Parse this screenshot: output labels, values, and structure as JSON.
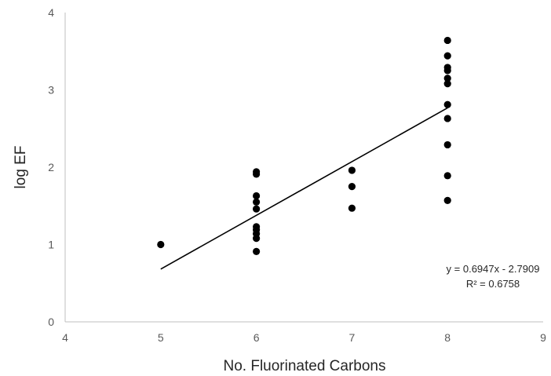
{
  "chart_data": {
    "type": "scatter",
    "title": "",
    "xlabel": "No. Fluorinated Carbons",
    "ylabel": "log EF",
    "xlim": [
      4,
      9
    ],
    "ylim": [
      0,
      4
    ],
    "x_ticks": [
      "4",
      "5",
      "6",
      "7",
      "8",
      "9"
    ],
    "y_ticks": [
      "0",
      "1",
      "2",
      "3",
      "4"
    ],
    "grid": false,
    "legend": "none",
    "colors": {
      "points": "#000000",
      "axis": "#bfbfbf",
      "trendline": "#000000"
    },
    "points": [
      {
        "x": 5,
        "y": 1.0
      },
      {
        "x": 6,
        "y": 0.91
      },
      {
        "x": 6,
        "y": 1.08
      },
      {
        "x": 6,
        "y": 1.14
      },
      {
        "x": 6,
        "y": 1.19
      },
      {
        "x": 6,
        "y": 1.23
      },
      {
        "x": 6,
        "y": 1.46
      },
      {
        "x": 6,
        "y": 1.55
      },
      {
        "x": 6,
        "y": 1.63
      },
      {
        "x": 6,
        "y": 1.91
      },
      {
        "x": 6,
        "y": 1.94
      },
      {
        "x": 7,
        "y": 1.47
      },
      {
        "x": 7,
        "y": 1.75
      },
      {
        "x": 7,
        "y": 1.96
      },
      {
        "x": 8,
        "y": 1.57
      },
      {
        "x": 8,
        "y": 1.89
      },
      {
        "x": 8,
        "y": 2.29
      },
      {
        "x": 8,
        "y": 2.63
      },
      {
        "x": 8,
        "y": 2.81
      },
      {
        "x": 8,
        "y": 3.08
      },
      {
        "x": 8,
        "y": 3.15
      },
      {
        "x": 8,
        "y": 3.25
      },
      {
        "x": 8,
        "y": 3.29
      },
      {
        "x": 8,
        "y": 3.44
      },
      {
        "x": 8,
        "y": 3.64
      }
    ],
    "trendline": {
      "slope": 0.6947,
      "intercept": -2.7909,
      "x_range": [
        5,
        8
      ],
      "equation": "y = 0.6947x - 2.7909",
      "r_squared": "R² = 0.6758"
    }
  }
}
